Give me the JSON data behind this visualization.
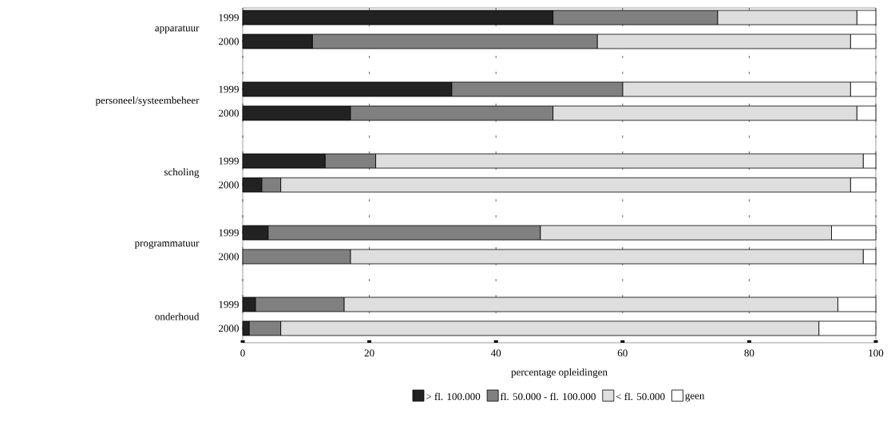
{
  "chart_data": {
    "type": "bar",
    "orientation": "horizontal",
    "stacked": true,
    "categories": [
      "1999",
      "2000",
      "1999",
      "2000",
      "1999",
      "2000",
      "1999",
      "2000",
      "1999",
      "2000"
    ],
    "annotations": [
      "apparatuur",
      "personeel/systeembeheer",
      "scholing",
      "programmatuur",
      "onderhoud"
    ],
    "series": [
      {
        "name": "> fl. 100.000",
        "color": "#222222",
        "values": [
          49,
          11,
          33,
          17,
          13,
          3,
          4,
          0,
          2,
          1
        ]
      },
      {
        "name": "fl. 50.000 - fl. 100.000",
        "color": "#808080",
        "values": [
          26,
          45,
          27,
          32,
          8,
          3,
          43,
          17,
          14,
          5
        ]
      },
      {
        "name": "< fl. 50.000",
        "color": "#dedede",
        "values": [
          22,
          40,
          36,
          48,
          77,
          90,
          46,
          81,
          78,
          85
        ]
      },
      {
        "name": "geen",
        "color": "#ffffff",
        "values": [
          3,
          4,
          4,
          3,
          2,
          4,
          7,
          2,
          6,
          9
        ]
      }
    ],
    "xlabel": "percentage opleidingen",
    "xlim": [
      0,
      100
    ],
    "xticks": [
      0,
      20,
      40,
      60,
      80,
      100
    ],
    "grid": "x",
    "legend": "bottom"
  }
}
